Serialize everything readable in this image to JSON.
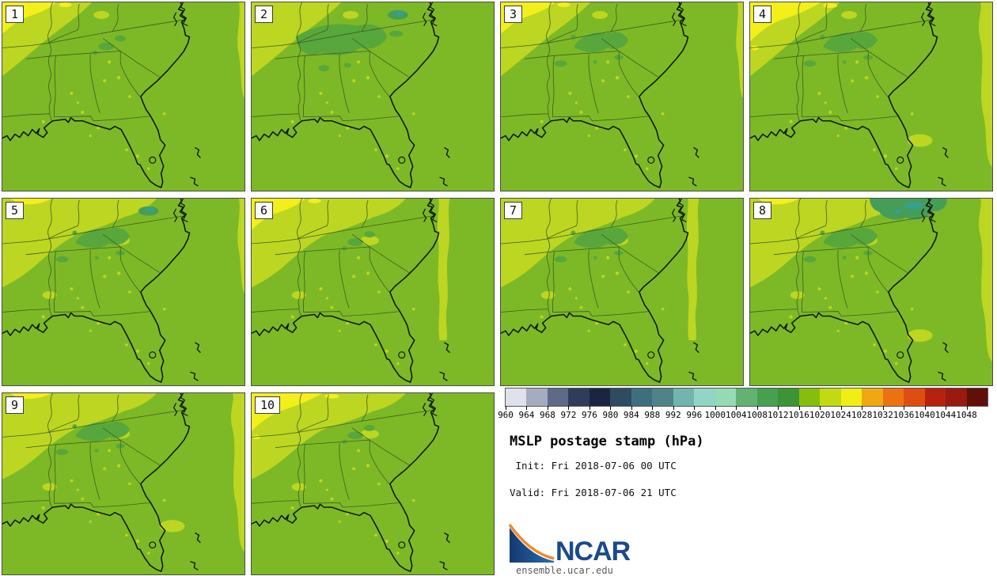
{
  "figure": {
    "title": "MSLP postage stamp (hPa)",
    "init_line": " Init: Fri 2018-07-06 00 UTC",
    "valid_line": "Valid: Fri 2018-07-06 21 UTC",
    "logo_text": "NCAR",
    "footer_url": "ensemble.ucar.edu"
  },
  "panels": [
    {
      "num": "1",
      "features": [
        "yellow-md",
        "light-md",
        "dark-sm",
        "strip-sm"
      ]
    },
    {
      "num": "2",
      "features": [
        "light-md",
        "dark-lg",
        "teal-center"
      ]
    },
    {
      "num": "3",
      "features": [
        "yellow-md",
        "light-md",
        "dark-md",
        "strip-sm"
      ]
    },
    {
      "num": "4",
      "features": [
        "yellow-lg",
        "light-md",
        "dark-md",
        "strip-lg"
      ]
    },
    {
      "num": "5",
      "features": [
        "yellow-sm",
        "light-lg",
        "dark-md",
        "strip-sm",
        "teal-center"
      ]
    },
    {
      "num": "6",
      "features": [
        "yellow-md",
        "light-lg",
        "dark-sm",
        "strip-off"
      ]
    },
    {
      "num": "7",
      "features": [
        "light-lg",
        "dark-md",
        "strip-off"
      ]
    },
    {
      "num": "8",
      "features": [
        "yellow-sm",
        "light-lg",
        "dark-md",
        "strip-lg",
        "teal-right"
      ]
    },
    {
      "num": "9",
      "features": [
        "yellow-sm",
        "light-lg",
        "dark-md",
        "strip-lg"
      ]
    },
    {
      "num": "10",
      "features": [
        "yellow-lg",
        "light-lg",
        "dark-sm"
      ]
    }
  ],
  "colorbar": {
    "tick_labels": [
      "960",
      "964",
      "968",
      "972",
      "976",
      "980",
      "984",
      "988",
      "992",
      "996",
      "1000",
      "1004",
      "1008",
      "1012",
      "1016",
      "1020",
      "1024",
      "1028",
      "1032",
      "1036",
      "1040",
      "1044",
      "1048"
    ],
    "segment_colors": [
      "#dfe2ec",
      "#a5abc0",
      "#5e6a87",
      "#2f3c5a",
      "#1b2540",
      "#2e4b60",
      "#3e6f7e",
      "#4f8389",
      "#74b4af",
      "#92d4c5",
      "#95dab5",
      "#63b173",
      "#46a050",
      "#3d9434",
      "#87bd0c",
      "#c3da12",
      "#f0ee14",
      "#f0a812",
      "#ec7211",
      "#e04d12",
      "#b7220f",
      "#9a1a10",
      "#601009"
    ],
    "border_color": "#555555"
  },
  "map_colors": {
    "base": "#7db926",
    "light": "#bdd622",
    "yellow": "#f3ef1b",
    "dark": "#58a73c",
    "sea": "#469d58",
    "teal": "#36a089",
    "coast": "#0d1a05",
    "line": "#3f5c23"
  },
  "logo_colors": {
    "blue_dark": "#123a6e",
    "blue_light": "#2b6cb3",
    "orange": "#ef8b2b",
    "text_blue": "#1b4a8c"
  }
}
